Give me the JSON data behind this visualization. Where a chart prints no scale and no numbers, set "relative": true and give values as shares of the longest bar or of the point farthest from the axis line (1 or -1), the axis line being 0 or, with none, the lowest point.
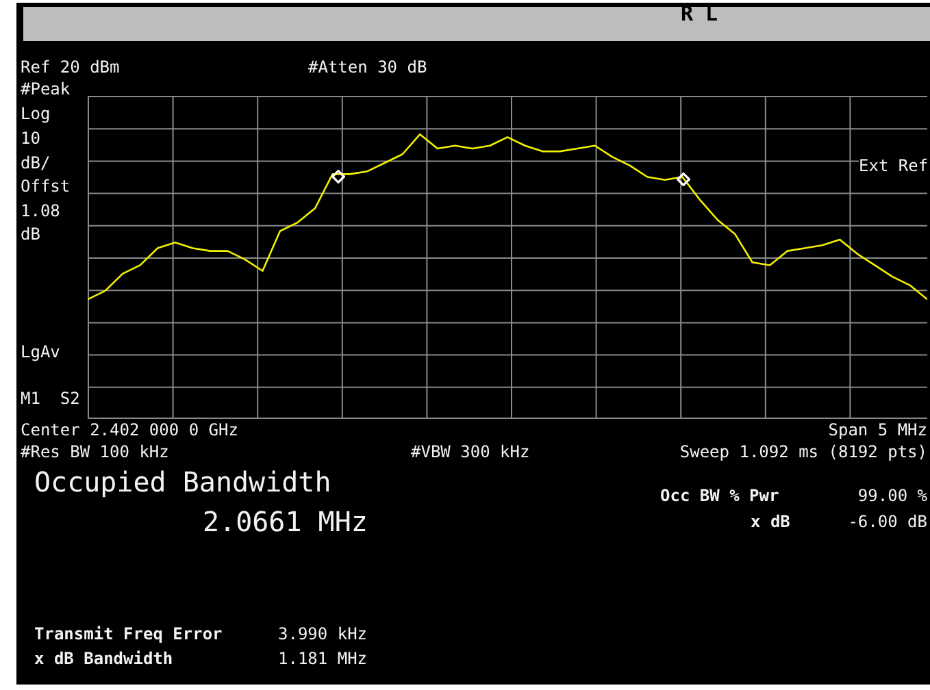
{
  "chart_data": {
    "type": "line",
    "relative": true,
    "grid": true,
    "categories": [
      null,
      null,
      null,
      null,
      null,
      null,
      null,
      null,
      null,
      null,
      null,
      null,
      null,
      null,
      null,
      null,
      null,
      null,
      null,
      null,
      null,
      null,
      null,
      null,
      null,
      null,
      null,
      null,
      null,
      null,
      null,
      null,
      null,
      null,
      null,
      null,
      null,
      null,
      null,
      null,
      null,
      null,
      null,
      null,
      null,
      null,
      null,
      null,
      null
    ],
    "series": [
      {
        "color": "#f0f000",
        "values": [
          0.42,
          0.45,
          0.51,
          0.54,
          0.6,
          0.62,
          0.6,
          0.59,
          0.59,
          0.56,
          0.52,
          0.66,
          0.69,
          0.74,
          0.86,
          0.86,
          0.87,
          0.9,
          0.93,
          1,
          0.95,
          0.96,
          0.95,
          0.96,
          0.99,
          0.96,
          0.94,
          0.94,
          0.95,
          0.96,
          0.92,
          0.89,
          0.85,
          0.84,
          0.85,
          0.77,
          0.7,
          0.65,
          0.55,
          0.54,
          0.59,
          0.6,
          0.61,
          0.63,
          0.58,
          0.54,
          0.5,
          0.47,
          0.42
        ]
      }
    ],
    "annotations": [
      "Ref 20 dBm",
      "#Atten 30 dB",
      "#Peak",
      "Log",
      "10",
      "dB/",
      "Offst",
      "1.08",
      "dB",
      "Ext Ref",
      "LgAv",
      "M1  S2",
      "Center 2.402 000 0 GHz",
      "Span 5 MHz",
      "#Res BW 100 kHz",
      "#VBW 300 kHz",
      "Sweep 1.092 ms (8192 pts)",
      "Occupied Bandwidth",
      "2.0661 MHz",
      "Occ BW % Pwr",
      "99.00 %",
      "x dB",
      "-6.00 dB",
      "Transmit Freq Error",
      "3.990 kHz",
      "x dB Bandwidth",
      "1.181 MHz",
      "R L"
    ]
  }
}
